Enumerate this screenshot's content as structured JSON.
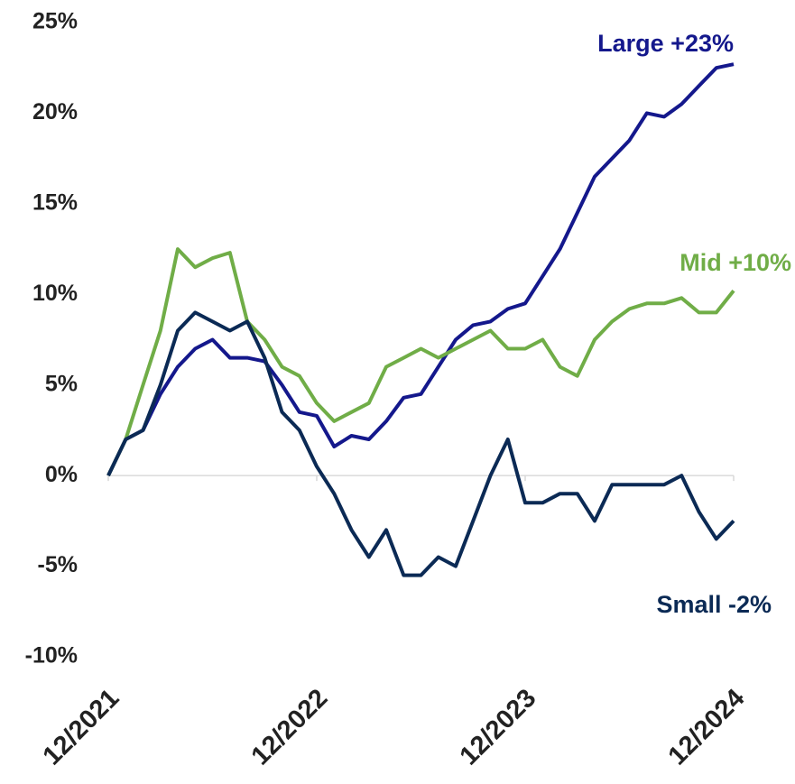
{
  "chart_data": {
    "type": "line",
    "x": [
      "12/2021",
      "1/2022",
      "2/2022",
      "3/2022",
      "4/2022",
      "5/2022",
      "6/2022",
      "7/2022",
      "8/2022",
      "9/2022",
      "10/2022",
      "11/2022",
      "12/2022",
      "1/2023",
      "2/2023",
      "3/2023",
      "4/2023",
      "5/2023",
      "6/2023",
      "7/2023",
      "8/2023",
      "9/2023",
      "10/2023",
      "11/2023",
      "12/2023",
      "1/2024",
      "2/2024",
      "3/2024",
      "4/2024",
      "5/2024",
      "6/2024",
      "7/2024",
      "8/2024",
      "9/2024",
      "10/2024",
      "11/2024",
      "12/2024"
    ],
    "series": [
      {
        "name": "Large +23%",
        "color": "#14188c",
        "values": [
          0,
          2,
          2.5,
          4.5,
          6,
          7,
          7.5,
          6.5,
          6.5,
          6.3,
          5,
          3.5,
          3.3,
          1.6,
          2.2,
          2,
          3,
          4.3,
          4.5,
          6,
          7.5,
          8.3,
          8.5,
          9.2,
          9.5,
          11,
          12.5,
          14.5,
          16.5,
          17.5,
          18.5,
          20,
          19.8,
          20.5,
          21.5,
          22.5,
          22.7
        ]
      },
      {
        "name": "Mid +10%",
        "color": "#70ad47",
        "values": [
          0,
          2,
          5,
          8,
          12.5,
          11.5,
          12,
          12.3,
          8.5,
          7.5,
          6,
          5.5,
          4,
          3,
          3.5,
          4,
          6,
          6.5,
          7,
          6.5,
          7,
          7.5,
          8,
          7,
          7,
          7.5,
          6,
          5.5,
          7.5,
          8.5,
          9.2,
          9.5,
          9.5,
          9.8,
          9,
          9,
          10.2
        ]
      },
      {
        "name": "Small -2%",
        "color": "#0b2a55",
        "values": [
          0,
          2,
          2.5,
          5,
          8,
          9,
          8.5,
          8,
          8.5,
          6.5,
          3.5,
          2.5,
          0.5,
          -1,
          -3,
          -4.5,
          -3,
          -5.5,
          -5.5,
          -4.5,
          -5,
          -2.5,
          0,
          2,
          -1.5,
          -1.5,
          -1,
          -1,
          -2.5,
          -0.5,
          -0.5,
          -0.5,
          -0.5,
          0,
          -2,
          -3.5,
          -2.5
        ]
      }
    ],
    "ylim": [
      -10,
      25
    ],
    "yticks": [
      {
        "value": -10,
        "label": "-10%"
      },
      {
        "value": -5,
        "label": "-5%"
      },
      {
        "value": 0,
        "label": "0%"
      },
      {
        "value": 5,
        "label": "5%"
      },
      {
        "value": 10,
        "label": "10%"
      },
      {
        "value": 15,
        "label": "15%"
      },
      {
        "value": 20,
        "label": "20%"
      },
      {
        "value": 25,
        "label": "25%"
      }
    ],
    "xticks": [
      "12/2021",
      "12/2022",
      "12/2023",
      "12/2024"
    ]
  }
}
